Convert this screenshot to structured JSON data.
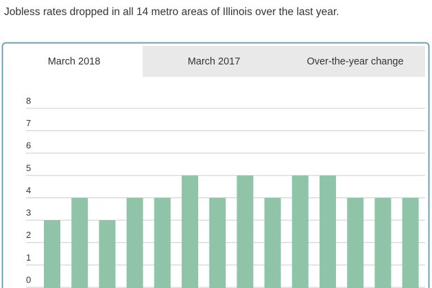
{
  "chart_data": {
    "type": "bar",
    "title": "Jobless rates dropped in all 14 metro areas of Illinois over the last year.",
    "tabs": [
      "March 2018",
      "March 2017",
      "Over-the-year change"
    ],
    "active_tab": 0,
    "values": [
      3,
      4,
      3,
      4,
      4,
      5,
      4,
      5,
      4,
      5,
      5,
      4,
      4,
      4
    ],
    "color": "#8fc4a9",
    "ylim": [
      0,
      8
    ],
    "yticks": [
      0,
      1,
      2,
      3,
      4,
      5,
      6,
      7,
      8
    ],
    "grid": true
  }
}
